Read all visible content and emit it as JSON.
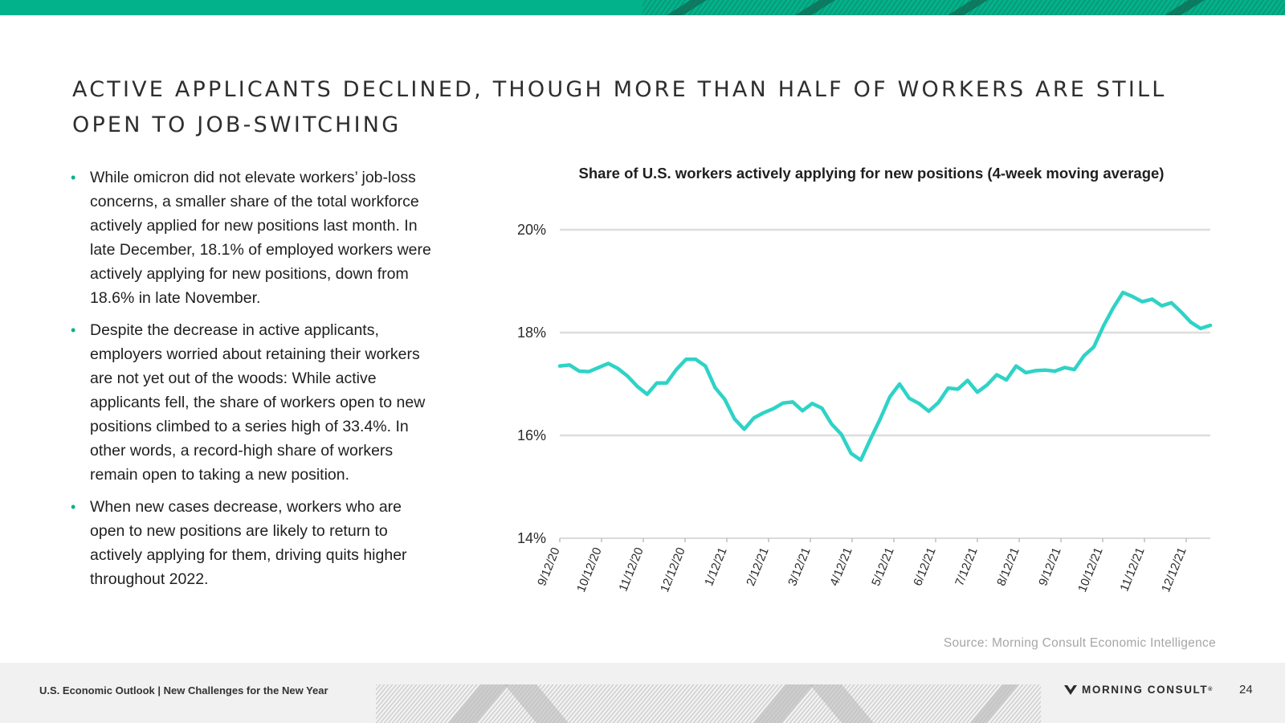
{
  "slide": {
    "title_line1": "ACTIVE APPLICANTS DECLINED, THOUGH MORE THAN HALF OF WORKERS ARE STILL",
    "title_line2": "OPEN TO JOB-SWITCHING",
    "bullets": [
      "While omicron did not elevate workers’ job-loss concerns, a smaller share of the total workforce actively applied for new positions last month. In late December, 18.1% of employed workers were actively applying for new positions, down from 18.6% in late November.",
      "Despite the decrease in active applicants, employers worried about retaining their workers are not yet out of the woods: While active applicants fell, the share of workers open to new positions climbed to a series high of 33.4%. In other words, a record-high share of workers remain open to taking a new position.",
      "When new cases decrease, workers who are open to new positions are likely to return to actively applying for them, driving quits higher throughout 2022."
    ],
    "bullet_symbol": "•",
    "source": "Source: Morning Consult Economic Intelligence",
    "footer_text": "U.S. Economic Outlook | New Challenges for the New Year",
    "brand": "MORNING CONSULT",
    "brand_mark": "®",
    "page_number": "24",
    "accent_color": "#00b38a"
  },
  "chart_data": {
    "type": "line",
    "title": "Share of U.S. workers actively applying for new positions (4-week moving average)",
    "xlabel": "",
    "ylabel": "",
    "ylim": [
      14,
      20
    ],
    "y_ticks": [
      14,
      16,
      18,
      20
    ],
    "y_tick_labels": [
      "14%",
      "16%",
      "18%",
      "20%"
    ],
    "grid": true,
    "line_color": "#2ed3c6",
    "x_tick_labels": [
      "9/12/20",
      "10/12/20",
      "11/12/20",
      "12/12/20",
      "1/12/21",
      "2/12/21",
      "3/12/21",
      "4/12/21",
      "5/12/21",
      "6/12/21",
      "7/12/21",
      "8/12/21",
      "9/12/21",
      "10/12/21",
      "11/12/21",
      "12/12/21"
    ],
    "series": [
      {
        "name": "Share of U.S. workers actively applying for new positions",
        "values": [
          17.35,
          17.37,
          17.25,
          17.24,
          17.32,
          17.4,
          17.3,
          17.15,
          16.95,
          16.8,
          17.02,
          17.02,
          17.28,
          17.48,
          17.48,
          17.35,
          16.93,
          16.7,
          16.32,
          16.12,
          16.34,
          16.44,
          16.52,
          16.63,
          16.65,
          16.48,
          16.62,
          16.53,
          16.22,
          16.02,
          15.65,
          15.52,
          15.93,
          16.32,
          16.75,
          17.0,
          16.72,
          16.62,
          16.47,
          16.64,
          16.92,
          16.9,
          17.07,
          16.84,
          16.98,
          17.18,
          17.08,
          17.35,
          17.22,
          17.26,
          17.27,
          17.25,
          17.32,
          17.28,
          17.55,
          17.72,
          18.13,
          18.48,
          18.78,
          18.7,
          18.6,
          18.65,
          18.52,
          18.58,
          18.4,
          18.2,
          18.08,
          18.14
        ]
      }
    ]
  }
}
